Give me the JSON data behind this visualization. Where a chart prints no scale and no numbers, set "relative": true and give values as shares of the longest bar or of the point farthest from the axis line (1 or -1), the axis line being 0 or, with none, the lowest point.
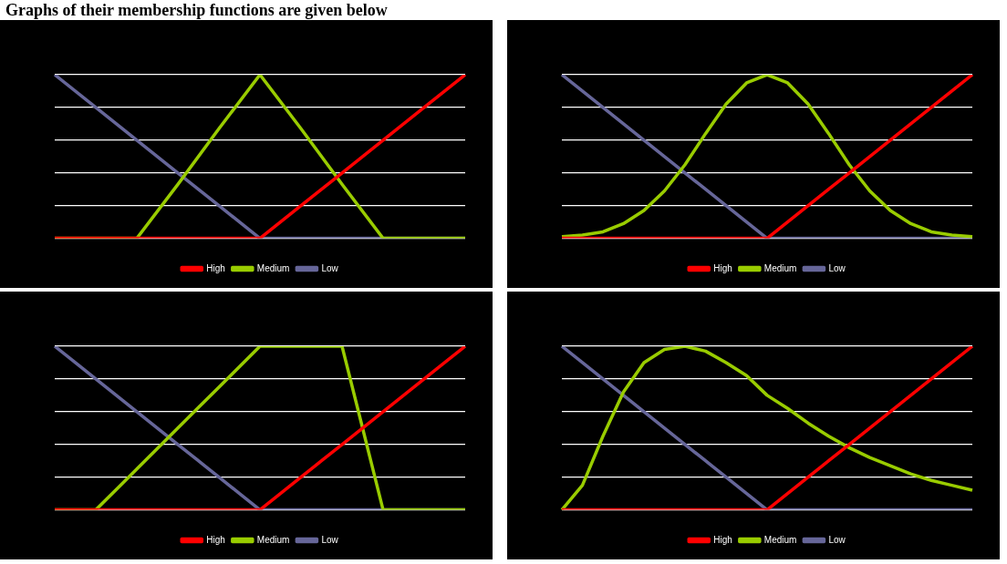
{
  "chart_data": [
    {
      "type": "line",
      "title": "Graphs of their membership functions are given below",
      "relative": true,
      "grid": "y",
      "legend": "bottom",
      "marker": "none",
      "line_style": "solid",
      "categories": [
        null,
        null,
        null,
        null,
        null,
        null,
        null,
        null,
        null,
        null,
        null
      ],
      "series": [
        {
          "name": "High",
          "color": "#ff0000",
          "values": [
            0,
            0,
            0,
            0,
            0,
            0,
            0.2,
            0.4,
            0.6,
            0.8,
            1
          ]
        },
        {
          "name": "Medium",
          "color": "#99cc00",
          "values": [
            0,
            0,
            0,
            0.33,
            0.67,
            1,
            0.67,
            0.33,
            0,
            0,
            0
          ]
        },
        {
          "name": "Low",
          "color": "#666699",
          "values": [
            1,
            0.8,
            0.6,
            0.4,
            0.2,
            0,
            0,
            0,
            0,
            0,
            0
          ]
        }
      ]
    },
    {
      "type": "line",
      "relative": true,
      "grid": "y",
      "legend": "bottom",
      "marker": "none",
      "line_style": "solid",
      "categories": [
        null,
        null,
        null,
        null,
        null,
        null,
        null,
        null,
        null,
        null,
        null,
        null,
        null,
        null,
        null,
        null,
        null,
        null,
        null,
        null,
        null
      ],
      "series": [
        {
          "name": "High",
          "color": "#ff0000",
          "values": [
            0,
            0,
            0,
            0,
            0,
            0,
            0,
            0,
            0,
            0,
            0,
            0.1,
            0.2,
            0.3,
            0.4,
            0.5,
            0.6,
            0.7,
            0.8,
            0.9,
            1
          ]
        },
        {
          "name": "Medium",
          "color": "#99cc00",
          "values": [
            0.01,
            0.02,
            0.04,
            0.09,
            0.17,
            0.29,
            0.45,
            0.64,
            0.82,
            0.95,
            1,
            0.95,
            0.82,
            0.64,
            0.45,
            0.29,
            0.17,
            0.09,
            0.04,
            0.02,
            0.01
          ]
        },
        {
          "name": "Low",
          "color": "#666699",
          "values": [
            1,
            0.9,
            0.8,
            0.7,
            0.6,
            0.5,
            0.4,
            0.3,
            0.2,
            0.1,
            0,
            0,
            0,
            0,
            0,
            0,
            0,
            0,
            0,
            0,
            0
          ]
        }
      ]
    },
    {
      "type": "line",
      "relative": true,
      "grid": "y",
      "legend": "bottom",
      "marker": "none",
      "line_style": "solid",
      "categories": [
        null,
        null,
        null,
        null,
        null,
        null,
        null,
        null,
        null,
        null,
        null,
        null,
        null,
        null,
        null,
        null,
        null,
        null,
        null,
        null,
        null
      ],
      "series": [
        {
          "name": "High",
          "color": "#ff0000",
          "values": [
            0,
            0,
            0,
            0,
            0,
            0,
            0,
            0,
            0,
            0,
            0,
            0.1,
            0.2,
            0.3,
            0.4,
            0.5,
            0.6,
            0.7,
            0.8,
            0.9,
            1
          ]
        },
        {
          "name": "Medium",
          "color": "#99cc00",
          "values": [
            0,
            0,
            0,
            0.125,
            0.25,
            0.375,
            0.5,
            0.625,
            0.75,
            0.875,
            1,
            1,
            1,
            1,
            1,
            0.5,
            0,
            0,
            0,
            0,
            0
          ]
        },
        {
          "name": "Low",
          "color": "#666699",
          "values": [
            1,
            0.9,
            0.8,
            0.7,
            0.6,
            0.5,
            0.4,
            0.3,
            0.2,
            0.1,
            0,
            0,
            0,
            0,
            0,
            0,
            0,
            0,
            0,
            0,
            0
          ]
        }
      ]
    },
    {
      "type": "line",
      "relative": true,
      "grid": "y",
      "legend": "bottom",
      "marker": "none",
      "line_style": "solid",
      "categories": [
        null,
        null,
        null,
        null,
        null,
        null,
        null,
        null,
        null,
        null,
        null,
        null,
        null,
        null,
        null,
        null,
        null,
        null,
        null,
        null,
        null
      ],
      "series": [
        {
          "name": "High",
          "color": "#ff0000",
          "values": [
            0,
            0,
            0,
            0,
            0,
            0,
            0,
            0,
            0,
            0,
            0,
            0.1,
            0.2,
            0.3,
            0.4,
            0.5,
            0.6,
            0.7,
            0.8,
            0.9,
            1
          ]
        },
        {
          "name": "Medium",
          "color": "#99cc00",
          "values": [
            0,
            0.15,
            0.45,
            0.72,
            0.9,
            0.98,
            1,
            0.97,
            0.9,
            0.82,
            0.7,
            0.62,
            0.53,
            0.45,
            0.38,
            0.32,
            0.27,
            0.22,
            0.18,
            0.15,
            0.12
          ]
        },
        {
          "name": "Low",
          "color": "#666699",
          "values": [
            1,
            0.9,
            0.8,
            0.7,
            0.6,
            0.5,
            0.4,
            0.3,
            0.2,
            0.1,
            0,
            0,
            0,
            0,
            0,
            0,
            0,
            0,
            0,
            0,
            0
          ]
        }
      ]
    }
  ]
}
